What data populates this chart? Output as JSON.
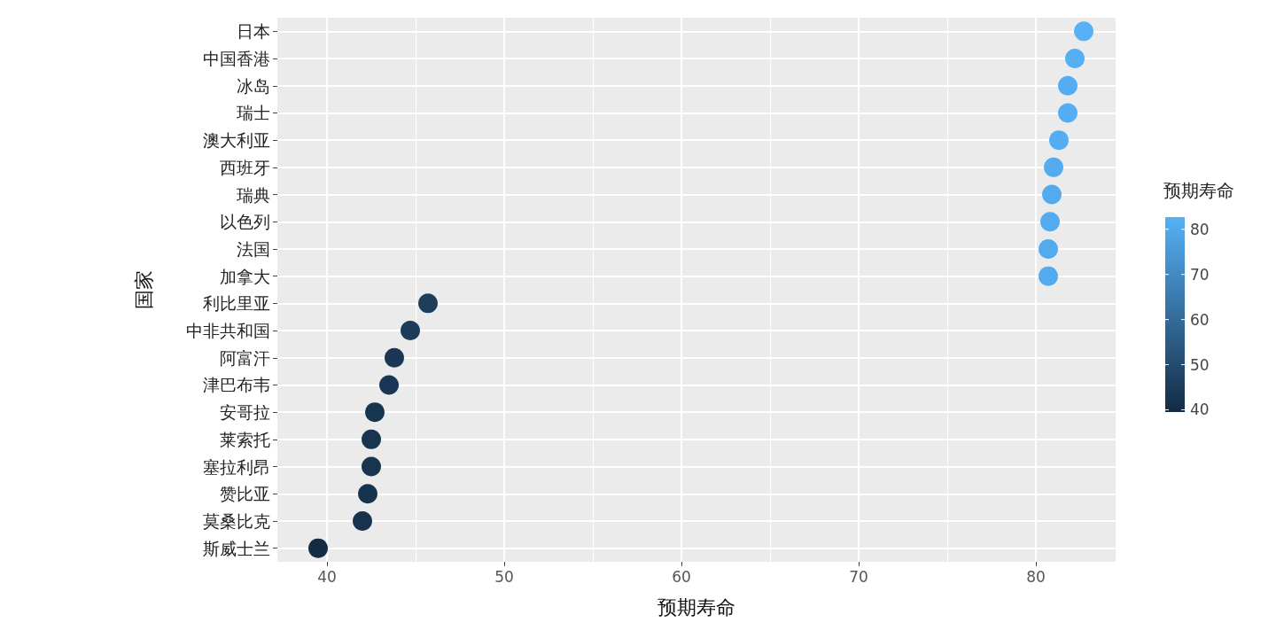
{
  "chart_data": {
    "type": "scatter",
    "orientation": "horizontal",
    "xlabel": "预期寿命",
    "ylabel": "国家",
    "clabel": "预期寿命",
    "categories": [
      "日本",
      "中国香港",
      "冰岛",
      "瑞士",
      "澳大利亚",
      "西班牙",
      "瑞典",
      "以色列",
      "法国",
      "加拿大",
      "利比里亚",
      "中非共和国",
      "阿富汗",
      "津巴布韦",
      "安哥拉",
      "莱索托",
      "塞拉利昂",
      "赞比亚",
      "莫桑比克",
      "斯威士兰"
    ],
    "values": [
      82.7,
      82.2,
      81.8,
      81.8,
      81.3,
      81.0,
      80.9,
      80.8,
      80.7,
      80.7,
      45.7,
      44.7,
      43.8,
      43.5,
      42.7,
      42.5,
      42.5,
      42.3,
      42.0,
      39.5
    ],
    "cvalues": [
      82.7,
      82.2,
      81.8,
      81.8,
      81.3,
      81.0,
      80.9,
      80.8,
      80.7,
      80.7,
      45.7,
      44.7,
      43.8,
      43.5,
      42.7,
      42.5,
      42.5,
      42.3,
      42.0,
      39.5
    ],
    "colors": [
      "#56b1f7",
      "#55aff5",
      "#55aef3",
      "#55aef3",
      "#54adf1",
      "#53acf0",
      "#53abef",
      "#53abef",
      "#53abef",
      "#53abef",
      "#1d3e5d",
      "#1b3b59",
      "#1a3855",
      "#193754",
      "#183550",
      "#18344f",
      "#18344f",
      "#17344f",
      "#17334d",
      "#132b43"
    ],
    "clim": [
      39.5,
      82.7
    ],
    "cticks": [
      40,
      50,
      60,
      70,
      80
    ],
    "xlim": [
      37.2,
      84.5
    ],
    "xticks": [
      40,
      50,
      60,
      70,
      80
    ],
    "grid": true,
    "marker": "circle"
  }
}
